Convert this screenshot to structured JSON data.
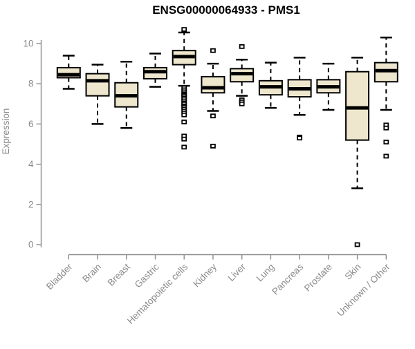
{
  "chart_data": {
    "type": "boxplot",
    "title": "ENSG00000064933 - PMS1",
    "xlabel": "",
    "ylabel": "Expression",
    "ylim": [
      0,
      10.7
    ],
    "yticks": [
      0,
      2,
      4,
      6,
      8,
      10
    ],
    "grid": false,
    "legend": null,
    "categories": [
      "Bladder",
      "Brain",
      "Breast",
      "Gastric",
      "Hematopoietic cells",
      "Kidney",
      "Liver",
      "Lung",
      "Pancreas",
      "Prostate",
      "Skin",
      "Unknown / Other"
    ],
    "series": [
      {
        "name": "Bladder",
        "whisker_low": 7.75,
        "q1": 8.3,
        "median": 8.45,
        "q3": 8.8,
        "whisker_high": 9.4,
        "outliers": []
      },
      {
        "name": "Brain",
        "whisker_low": 6.0,
        "q1": 7.4,
        "median": 8.15,
        "q3": 8.5,
        "whisker_high": 8.95,
        "outliers": []
      },
      {
        "name": "Breast",
        "whisker_low": 5.8,
        "q1": 6.85,
        "median": 7.4,
        "q3": 8.05,
        "whisker_high": 9.1,
        "outliers": []
      },
      {
        "name": "Gastric",
        "whisker_low": 7.85,
        "q1": 8.25,
        "median": 8.6,
        "q3": 8.8,
        "whisker_high": 9.5,
        "outliers": []
      },
      {
        "name": "Hematopoietic cells",
        "whisker_low": 7.9,
        "q1": 8.95,
        "median": 9.35,
        "q3": 9.65,
        "whisker_high": 10.55,
        "outliers": [
          10.7,
          7.8,
          7.7,
          7.6,
          7.5,
          7.45,
          7.4,
          7.3,
          7.25,
          7.15,
          7.05,
          7.0,
          6.9,
          6.85,
          6.75,
          6.65,
          6.55,
          6.45,
          6.1,
          5.4,
          5.25,
          4.85
        ]
      },
      {
        "name": "Kidney",
        "whisker_low": 6.65,
        "q1": 7.55,
        "median": 7.8,
        "q3": 8.35,
        "whisker_high": 9.0,
        "outliers": [
          9.65,
          6.4,
          4.9
        ]
      },
      {
        "name": "Liver",
        "whisker_low": 7.4,
        "q1": 8.1,
        "median": 8.5,
        "q3": 8.75,
        "whisker_high": 9.2,
        "outliers": [
          9.85,
          7.2,
          7.1,
          7.0
        ]
      },
      {
        "name": "Lung",
        "whisker_low": 6.8,
        "q1": 7.45,
        "median": 7.85,
        "q3": 8.15,
        "whisker_high": 9.05,
        "outliers": []
      },
      {
        "name": "Pancreas",
        "whisker_low": 6.45,
        "q1": 7.35,
        "median": 7.75,
        "q3": 8.2,
        "whisker_high": 9.3,
        "outliers": [
          5.35,
          5.3
        ]
      },
      {
        "name": "Prostate",
        "whisker_low": 6.7,
        "q1": 7.55,
        "median": 7.85,
        "q3": 8.2,
        "whisker_high": 9.0,
        "outliers": []
      },
      {
        "name": "Skin",
        "whisker_low": 2.8,
        "q1": 5.2,
        "median": 6.8,
        "q3": 8.6,
        "whisker_high": 9.3,
        "outliers": [
          0.0
        ]
      },
      {
        "name": "Unknown / Other",
        "whisker_low": 6.7,
        "q1": 8.1,
        "median": 8.65,
        "q3": 9.05,
        "whisker_high": 10.3,
        "outliers": [
          5.95,
          5.8,
          5.1,
          4.4
        ]
      }
    ],
    "colors": {
      "box_fill": "#eee7ce",
      "box_border": "#000000",
      "median": "#000000",
      "whisker": "#000000",
      "outlier_fill": "#ffffff",
      "axis": "#8a8a8a",
      "title": "#000000",
      "background": "#ffffff"
    }
  }
}
